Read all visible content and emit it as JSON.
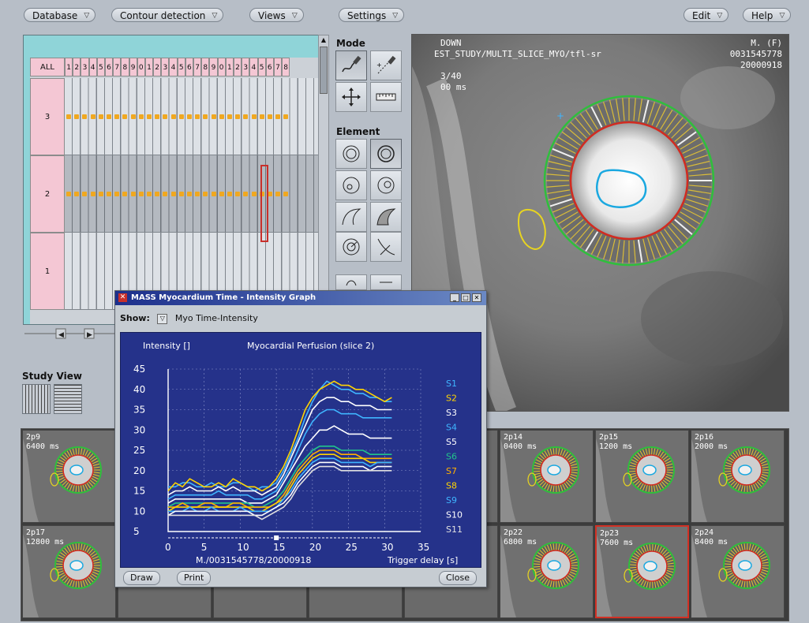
{
  "menus": {
    "database": "Database",
    "contour_detection": "Contour detection",
    "views": "Views",
    "settings": "Settings",
    "edit": "Edit",
    "help": "Help"
  },
  "timeline": {
    "all_label": "ALL",
    "columns": [
      "1",
      "2",
      "3",
      "4",
      "5",
      "6",
      "7",
      "8",
      "9",
      "0",
      "1",
      "2",
      "3",
      "4",
      "5",
      "6",
      "7",
      "8",
      "9",
      "0",
      "1",
      "2",
      "3",
      "4",
      "5",
      "6",
      "7",
      "8"
    ],
    "rows": [
      "3",
      "2",
      "1"
    ]
  },
  "mode_title": "Mode",
  "element_title": "Element",
  "main_image": {
    "line1_left": "DOWN",
    "line2_left": "EST_STUDY/MULTI_SLICE_MYO/tfl-sr",
    "line3_left": "3/40",
    "line4_left": "00 ms",
    "line1_right": "M. (F)",
    "line2_right": "0031545778",
    "line3_right": "20000918"
  },
  "study_view_title": "Study View",
  "thumbnails": [
    {
      "label1": "2p9",
      "label2": "6400 ms"
    },
    {
      "label1": "2p14",
      "label2": "0400 ms"
    },
    {
      "label1": "2p15",
      "label2": "1200 ms"
    },
    {
      "label1": "2p16",
      "label2": "2000 ms"
    },
    {
      "label1": "2p17",
      "label2": "12800 ms"
    },
    {
      "label1": "2p22",
      "label2": "6800 ms"
    },
    {
      "label1": "2p23",
      "label2": "7600 ms"
    },
    {
      "label1": "2p24",
      "label2": "8400 ms"
    }
  ],
  "graph_window": {
    "title": "MASS Myocardium Time - Intensity Graph",
    "show_label": "Show:",
    "show_value": "Myo Time-Intensity",
    "draw_button": "Draw",
    "print_button": "Print",
    "close_button": "Close"
  },
  "chart_data": {
    "type": "line",
    "title": "Myocardial Perfusion (slice 2)",
    "ylabel": "Intensity []",
    "xlabel": "Trigger delay [s]",
    "footer": "M./0031545778/20000918",
    "ylim": [
      5,
      45
    ],
    "xlim": [
      0,
      35
    ],
    "yticks": [
      "5",
      "10",
      "15",
      "20",
      "25",
      "30",
      "35",
      "40",
      "45"
    ],
    "xticks": [
      "0",
      "5",
      "10",
      "15",
      "20",
      "25",
      "30",
      "35"
    ],
    "grid": true,
    "legend_position": "right",
    "x": [
      0,
      1,
      2,
      3,
      4,
      5,
      6,
      7,
      8,
      9,
      10,
      11,
      12,
      13,
      14,
      15,
      16,
      17,
      18,
      19,
      20,
      21,
      22,
      23,
      24,
      25,
      26,
      27,
      28,
      29,
      30,
      31
    ],
    "series": [
      {
        "name": "S1",
        "color": "#3fb5ff",
        "values": [
          16,
          16,
          17,
          17,
          16,
          16,
          17,
          16,
          16,
          17,
          17,
          16,
          15,
          16,
          16,
          17,
          20,
          24,
          28,
          33,
          37,
          40,
          42,
          41,
          40,
          40,
          39,
          39,
          38,
          38,
          37,
          37
        ]
      },
      {
        "name": "S2",
        "color": "#ffd400",
        "values": [
          15,
          17,
          16,
          18,
          17,
          16,
          16,
          17,
          16,
          18,
          17,
          16,
          16,
          15,
          16,
          18,
          21,
          25,
          30,
          35,
          38,
          40,
          41,
          42,
          41,
          41,
          40,
          40,
          39,
          38,
          37,
          38
        ]
      },
      {
        "name": "S3",
        "color": "#ffffff",
        "values": [
          14,
          15,
          15,
          16,
          15,
          15,
          15,
          16,
          15,
          16,
          15,
          15,
          15,
          14,
          15,
          16,
          19,
          23,
          27,
          31,
          35,
          37,
          38,
          38,
          37,
          37,
          36,
          36,
          36,
          35,
          35,
          35
        ]
      },
      {
        "name": "S4",
        "color": "#3fb5ff",
        "values": [
          13,
          14,
          14,
          14,
          14,
          14,
          14,
          15,
          14,
          14,
          14,
          14,
          13,
          13,
          14,
          15,
          18,
          21,
          25,
          29,
          32,
          34,
          35,
          35,
          34,
          34,
          34,
          33,
          33,
          33,
          33,
          33
        ]
      },
      {
        "name": "S5",
        "color": "#ffffff",
        "values": [
          12,
          13,
          13,
          13,
          13,
          13,
          13,
          13,
          13,
          13,
          13,
          12,
          12,
          12,
          13,
          14,
          17,
          20,
          23,
          26,
          28,
          30,
          30,
          31,
          30,
          29,
          29,
          29,
          28,
          28,
          28,
          28
        ]
      },
      {
        "name": "S6",
        "color": "#22c58a",
        "values": [
          11,
          12,
          12,
          12,
          12,
          12,
          12,
          12,
          12,
          12,
          12,
          12,
          11,
          11,
          12,
          13,
          15,
          18,
          21,
          23,
          25,
          26,
          26,
          26,
          25,
          25,
          25,
          25,
          24,
          24,
          24,
          24
        ]
      },
      {
        "name": "S7",
        "color": "#ffb000",
        "values": [
          11,
          11,
          12,
          11,
          11,
          12,
          12,
          11,
          11,
          12,
          12,
          11,
          11,
          11,
          11,
          12,
          14,
          17,
          20,
          22,
          24,
          25,
          25,
          25,
          24,
          24,
          24,
          23,
          23,
          23,
          23,
          23
        ]
      },
      {
        "name": "S8",
        "color": "#ffd400",
        "values": [
          10,
          11,
          11,
          11,
          11,
          11,
          11,
          11,
          11,
          11,
          11,
          11,
          10,
          10,
          11,
          12,
          13,
          16,
          19,
          21,
          23,
          24,
          24,
          24,
          23,
          23,
          23,
          23,
          22,
          22,
          22,
          22
        ]
      },
      {
        "name": "S9",
        "color": "#3fb5ff",
        "values": [
          10,
          10,
          10,
          11,
          10,
          10,
          11,
          10,
          10,
          10,
          11,
          10,
          10,
          10,
          10,
          11,
          13,
          15,
          18,
          20,
          22,
          23,
          23,
          23,
          22,
          22,
          22,
          22,
          21,
          22,
          22,
          22
        ]
      },
      {
        "name": "S10",
        "color": "#ffffff",
        "values": [
          9,
          10,
          10,
          10,
          10,
          10,
          10,
          10,
          10,
          10,
          10,
          10,
          9,
          9,
          10,
          11,
          12,
          14,
          17,
          19,
          21,
          22,
          22,
          22,
          21,
          21,
          21,
          21,
          20,
          21,
          21,
          21
        ]
      },
      {
        "name": "S11",
        "color": "#e0e0e0",
        "values": [
          9,
          9,
          9,
          9,
          9,
          9,
          9,
          9,
          9,
          9,
          9,
          9,
          9,
          8,
          9,
          10,
          11,
          13,
          16,
          18,
          20,
          21,
          21,
          21,
          20,
          20,
          20,
          20,
          20,
          20,
          20,
          20
        ]
      }
    ]
  }
}
